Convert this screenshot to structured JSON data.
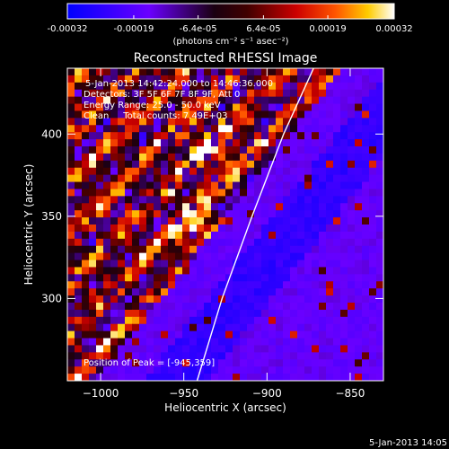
{
  "footer_timestamp": "5-Jan-2013 14:05",
  "colorbar": {
    "tick_labels": [
      "-0.00032",
      "-0.00019",
      "-6.4e-05",
      "6.4e-05",
      "0.00019",
      "0.00032"
    ],
    "tick_values": [
      -0.00032,
      -0.00019,
      -6.4e-05,
      6.4e-05,
      0.00019,
      0.00032
    ],
    "range": [
      -0.00032,
      0.00032
    ],
    "unit_label": "(photons cm⁻² s⁻¹ asec⁻²)",
    "stops": [
      {
        "t": 0.0,
        "color": "#0000ff"
      },
      {
        "t": 0.25,
        "color": "#6a00ff"
      },
      {
        "t": 0.45,
        "color": "#1a0010"
      },
      {
        "t": 0.55,
        "color": "#400000"
      },
      {
        "t": 0.7,
        "color": "#cc0000"
      },
      {
        "t": 0.82,
        "color": "#ff5500"
      },
      {
        "t": 0.92,
        "color": "#ffcc00"
      },
      {
        "t": 1.0,
        "color": "#ffffff"
      }
    ]
  },
  "chart_data": {
    "type": "heatmap",
    "title": "Reconstructed RHESSI Image",
    "xlabel": "Heliocentric X (arcsec)",
    "ylabel": "Heliocentric Y (arcsec)",
    "xlim": [
      -1020,
      -830
    ],
    "ylim": [
      250,
      440
    ],
    "x_ticks": [
      {
        "value": -1000,
        "label": "−1000"
      },
      {
        "value": -950,
        "label": "−950"
      },
      {
        "value": -900,
        "label": "−900"
      },
      {
        "value": -850,
        "label": "−850"
      }
    ],
    "y_ticks": [
      {
        "value": 300,
        "label": "300"
      },
      {
        "value": 350,
        "label": "350"
      },
      {
        "value": 400,
        "label": "400"
      }
    ],
    "annotations": [
      "5-Jan-2013 14:42:24.000 to 14:46:36.000",
      "Detectors: 3F 5F 6F 7F 8F 9F, Att 0",
      "Energy Range: 25.0 - 50.0 keV",
      "Clean     Total counts: 7.49E+03"
    ],
    "peak_label": "Position of Peak = [-945,359]",
    "limb_curve": [
      [
        -942,
        250
      ],
      [
        -927,
        300
      ],
      [
        -909,
        350
      ],
      [
        -890,
        400
      ],
      [
        -872,
        440
      ]
    ]
  }
}
